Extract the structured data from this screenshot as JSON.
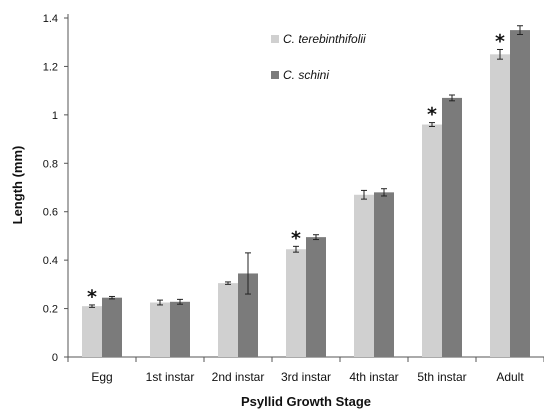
{
  "chart_data": {
    "type": "bar",
    "title": "",
    "xlabel": "Psyllid Growth Stage",
    "ylabel": "Length (mm)",
    "ylim": [
      0,
      1.4
    ],
    "yticks": [
      "0",
      "0.2",
      "0.4",
      "0.6",
      "0.8",
      "1",
      "1.2",
      "1.4"
    ],
    "categories": [
      "Egg",
      "1st instar",
      "2nd instar",
      "3rd instar",
      "4th instar",
      "5th instar",
      "Adult"
    ],
    "series": [
      {
        "name": "C. terebinthifolii",
        "color": "#d0d0d0",
        "values": [
          0.21,
          0.225,
          0.305,
          0.445,
          0.67,
          0.96,
          1.25
        ],
        "errors": [
          0.005,
          0.01,
          0.005,
          0.012,
          0.018,
          0.008,
          0.02
        ]
      },
      {
        "name": "C. schini",
        "color": "#7b7b7b",
        "values": [
          0.245,
          0.228,
          0.345,
          0.495,
          0.68,
          1.07,
          1.35
        ],
        "errors": [
          0.005,
          0.01,
          0.085,
          0.01,
          0.015,
          0.012,
          0.018
        ]
      }
    ],
    "significance_marker": "*",
    "significant": [
      true,
      false,
      false,
      true,
      false,
      true,
      true
    ],
    "grid": false,
    "legend_position": "top-center"
  }
}
